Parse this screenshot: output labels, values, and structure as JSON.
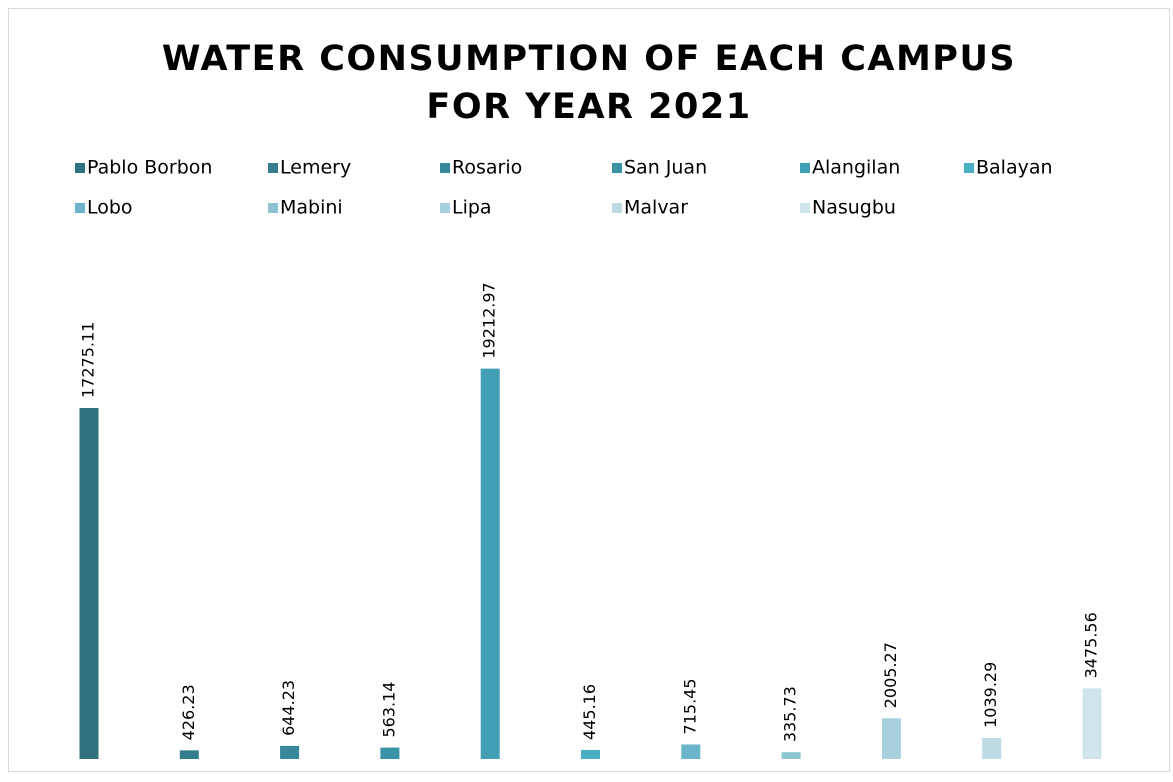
{
  "chart_data": {
    "type": "bar",
    "title": [
      "WATER CONSUMPTION OF EACH CAMPUS",
      "FOR YEAR 2021"
    ],
    "series": [
      {
        "name": "Pablo Borbon",
        "color": "#31727f",
        "values": [
          17275.11
        ]
      },
      {
        "name": "Lemery",
        "color": "#337d8e",
        "values": [
          426.23
        ]
      },
      {
        "name": "Rosario",
        "color": "#36889a",
        "values": [
          644.23
        ]
      },
      {
        "name": "San Juan",
        "color": "#3a93a6",
        "values": [
          563.14
        ]
      },
      {
        "name": "Alangilan",
        "color": "#42a0b5",
        "values": [
          19212.97
        ]
      },
      {
        "name": "Balayan",
        "color": "#4aaec4",
        "values": [
          445.16
        ]
      },
      {
        "name": "Lobo",
        "color": "#6ab5c9",
        "values": [
          715.45
        ]
      },
      {
        "name": "Mabini",
        "color": "#8dc3d3",
        "values": [
          335.73
        ]
      },
      {
        "name": "Lipa",
        "color": "#a8d1dd",
        "values": [
          2005.27
        ]
      },
      {
        "name": "Malvar",
        "color": "#bcdbe4",
        "values": [
          1039.29
        ]
      },
      {
        "name": "Nasugbu",
        "color": "#cfe5eb",
        "values": [
          3475.56
        ]
      }
    ],
    "ylim": [
      0,
      22000
    ],
    "legend": "top"
  }
}
